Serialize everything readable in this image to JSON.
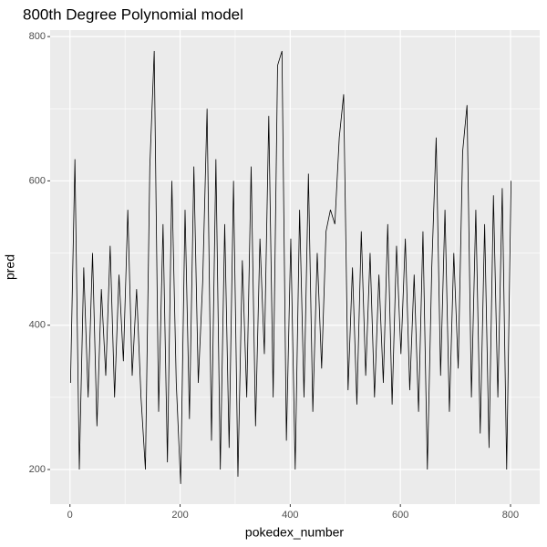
{
  "chart_data": {
    "type": "line",
    "title": "800th Degree Polynomial model",
    "x_label": "pokedex_number",
    "y_label": "pred",
    "x": [
      1,
      9,
      17,
      25,
      33,
      41,
      49,
      57,
      65,
      73,
      81,
      89,
      97,
      105,
      113,
      121,
      129,
      137,
      145,
      153,
      161,
      169,
      177,
      185,
      193,
      201,
      209,
      217,
      225,
      233,
      241,
      249,
      257,
      265,
      273,
      281,
      289,
      297,
      305,
      313,
      321,
      329,
      337,
      345,
      353,
      361,
      369,
      377,
      385,
      393,
      401,
      409,
      417,
      425,
      433,
      441,
      449,
      457,
      465,
      473,
      481,
      489,
      497,
      505,
      513,
      521,
      529,
      537,
      545,
      553,
      561,
      569,
      577,
      585,
      593,
      601,
      609,
      617,
      625,
      633,
      641,
      649,
      657,
      665,
      673,
      681,
      689,
      697,
      705,
      713,
      721,
      729,
      737,
      745,
      753,
      761,
      769,
      777,
      785,
      793,
      801
    ],
    "series": [
      {
        "name": "pred",
        "color": "#000000",
        "values": [
          320,
          630,
          200,
          480,
          300,
          500,
          260,
          450,
          330,
          510,
          300,
          470,
          350,
          560,
          330,
          450,
          300,
          200,
          620,
          780,
          280,
          540,
          210,
          600,
          320,
          180,
          560,
          270,
          620,
          320,
          460,
          700,
          240,
          630,
          200,
          540,
          230,
          600,
          190,
          490,
          300,
          620,
          260,
          520,
          360,
          690,
          300,
          760,
          780,
          240,
          520,
          200,
          560,
          300,
          610,
          280,
          500,
          340,
          530,
          560,
          540,
          660,
          720,
          310,
          480,
          290,
          530,
          330,
          500,
          300,
          470,
          320,
          540,
          290,
          510,
          360,
          520,
          310,
          470,
          280,
          530,
          200,
          480,
          660,
          330,
          560,
          280,
          500,
          340,
          640,
          705,
          300,
          560,
          250,
          540,
          230,
          580,
          300,
          590,
          200,
          600
        ]
      }
    ],
    "xlim": [
      -36,
      853
    ],
    "ylim": [
      152,
      809
    ],
    "xticks": [
      0,
      200,
      400,
      600,
      800
    ],
    "yticks": [
      200,
      400,
      600,
      800
    ],
    "x_minor_ticks": [
      100,
      300,
      500,
      700
    ],
    "y_minor_ticks": [
      300,
      500,
      700
    ],
    "grid": true
  }
}
